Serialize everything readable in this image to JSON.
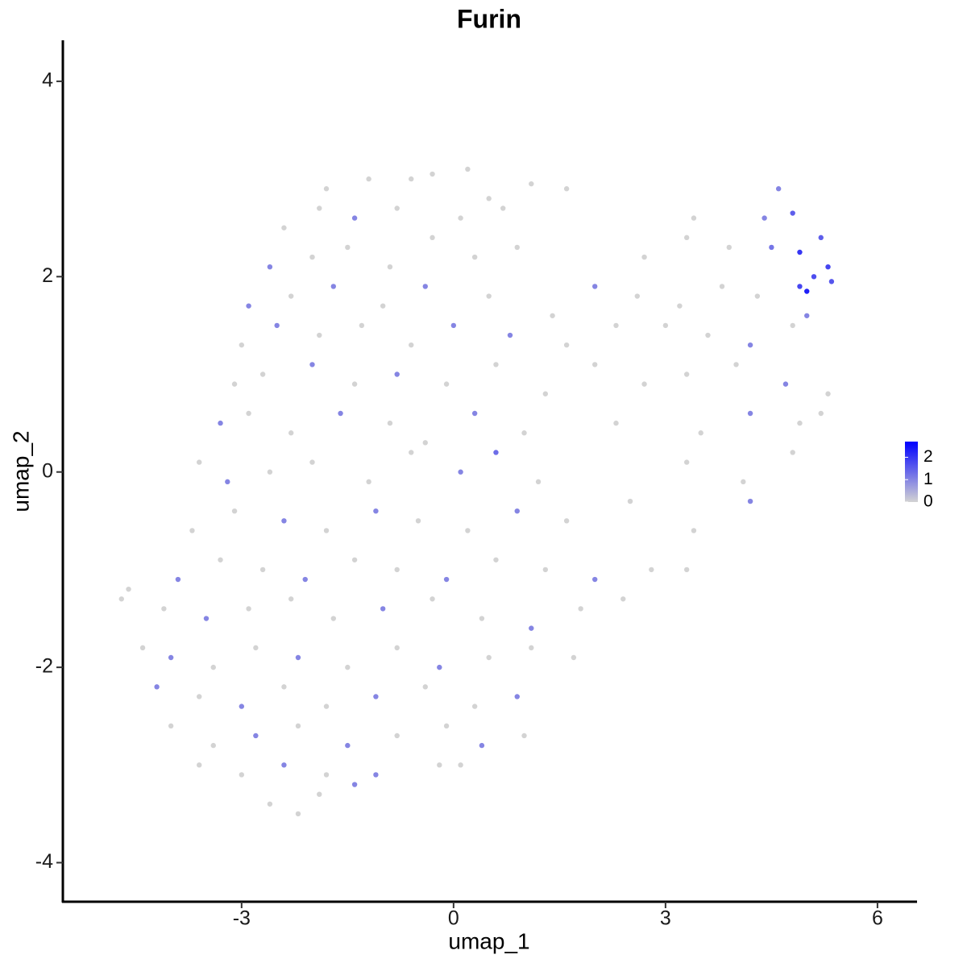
{
  "chart_data": {
    "type": "scatter",
    "title": "Furin",
    "x_label": "umap_1",
    "y_label": "umap_2",
    "xlim": [
      -5.53,
      6.56
    ],
    "ylim": [
      -4.4,
      4.42
    ],
    "xticks": [
      -3,
      0,
      3,
      6
    ],
    "yticks": [
      -4,
      -2,
      0,
      2,
      4
    ],
    "colorbar": {
      "lim": [
        0,
        2.7
      ],
      "ticks": [
        0,
        1,
        2
      ],
      "colors": [
        "#d3d3d3",
        "#0000ff"
      ]
    },
    "x": [
      -1.8,
      -1.2,
      -0.6,
      -0.3,
      0.2,
      0.5,
      1.1,
      -2.4,
      -1.9,
      -1.4,
      -0.8,
      0.1,
      0.7,
      1.6,
      3.4,
      4.4,
      4.6,
      4.8,
      -2.6,
      -2.0,
      -1.5,
      -0.9,
      -0.3,
      0.3,
      0.9,
      2.7,
      3.3,
      3.9,
      4.5,
      4.9,
      5.2,
      5.3,
      -2.9,
      -2.3,
      -1.7,
      -1.0,
      -0.4,
      0.5,
      1.4,
      2.0,
      2.6,
      3.2,
      3.8,
      4.3,
      5.0,
      4.9,
      5.35,
      5.1,
      -3.0,
      -2.5,
      -1.9,
      -1.3,
      -0.6,
      0,
      0.8,
      1.6,
      2.3,
      3.0,
      3.6,
      4.2,
      4.8,
      5.0,
      -3.1,
      -2.7,
      -2.0,
      -1.4,
      -0.8,
      -0.1,
      0.6,
      1.3,
      2.0,
      2.7,
      3.3,
      4.0,
      4.7,
      5.3,
      -3.3,
      -2.9,
      -2.3,
      -1.6,
      -0.9,
      -0.4,
      0.3,
      1.0,
      2.3,
      3.5,
      4.2,
      4.9,
      5.2,
      -3.6,
      -3.2,
      -2.6,
      -2.0,
      -1.2,
      -0.6,
      0.1,
      0.6,
      1.2,
      3.3,
      4.1,
      4.8,
      -3.7,
      -3.1,
      -2.4,
      -1.8,
      -1.1,
      -0.5,
      0.2,
      0.9,
      1.6,
      2.5,
      3.4,
      4.2,
      -3.9,
      -3.3,
      -2.7,
      -2.1,
      -1.4,
      -0.8,
      -0.1,
      0.6,
      1.3,
      2.0,
      2.8,
      3.3,
      -4.7,
      -4.6,
      -4.1,
      -3.5,
      -2.9,
      -2.3,
      -1.7,
      -1.0,
      -0.3,
      0.4,
      1.1,
      1.8,
      2.4,
      -4.4,
      -4.0,
      -3.4,
      -2.8,
      -2.2,
      -1.5,
      -0.8,
      -0.2,
      0.5,
      1.1,
      1.7,
      -4.2,
      -3.6,
      -3.0,
      -2.4,
      -1.8,
      -1.1,
      -0.4,
      0.3,
      0.9,
      -4.0,
      -3.4,
      -2.8,
      -2.2,
      -1.5,
      -0.8,
      -0.1,
      0.4,
      1.0,
      -3.6,
      -3.0,
      -2.4,
      -1.8,
      -1.1,
      -0.2,
      0.1,
      -2.6,
      -2.2,
      -1.9,
      -1.4
    ],
    "values": [
      2.9,
      3.0,
      3.0,
      3.05,
      3.1,
      2.8,
      2.95,
      2.5,
      2.7,
      2.6,
      2.7,
      2.6,
      2.7,
      2.9,
      2.6,
      2.6,
      2.9,
      2.65,
      2.1,
      2.2,
      2.3,
      2.1,
      2.4,
      2.2,
      2.3,
      2.2,
      2.4,
      2.3,
      2.3,
      2.25,
      2.4,
      2.1,
      1.7,
      1.8,
      1.9,
      1.7,
      1.9,
      1.8,
      1.6,
      1.9,
      1.8,
      1.7,
      1.9,
      1.8,
      1.85,
      1.9,
      1.95,
      2.0,
      1.3,
      1.5,
      1.4,
      1.5,
      1.3,
      1.5,
      1.4,
      1.3,
      1.5,
      1.5,
      1.4,
      1.3,
      1.5,
      1.6,
      0.9,
      1.0,
      1.1,
      0.9,
      1.0,
      0.9,
      1.1,
      0.8,
      1.1,
      0.9,
      1.0,
      1.1,
      0.9,
      0.8,
      0.5,
      0.6,
      0.4,
      0.6,
      0.5,
      0.3,
      0.6,
      0.4,
      0.5,
      0.4,
      0.6,
      0.5,
      0.6,
      0.1,
      -0.1,
      0.0,
      0.1,
      -0.1,
      0.2,
      0.0,
      0.2,
      -0.1,
      0.1,
      -0.1,
      0.2,
      -0.6,
      -0.4,
      -0.5,
      -0.6,
      -0.4,
      -0.5,
      -0.6,
      -0.4,
      -0.5,
      -0.3,
      -0.6,
      -0.3,
      -1.1,
      -0.9,
      -1.0,
      -1.1,
      -0.9,
      -1.0,
      -1.1,
      -0.9,
      -1.0,
      -1.1,
      -1.0,
      -1.0,
      -1.3,
      -1.2,
      -1.4,
      -1.5,
      -1.4,
      -1.3,
      -1.5,
      -1.4,
      -1.3,
      -1.5,
      -1.6,
      -1.4,
      -1.3,
      -1.8,
      -1.9,
      -2.0,
      -1.8,
      -1.9,
      -2.0,
      -1.8,
      -2.0,
      -1.9,
      -1.8,
      -1.9,
      -2.2,
      -2.3,
      -2.4,
      -2.2,
      -2.4,
      -2.3,
      -2.2,
      -2.4,
      -2.3,
      -2.6,
      -2.8,
      -2.7,
      -2.6,
      -2.8,
      -2.7,
      -2.6,
      -2.8,
      -2.7,
      -3.0,
      -3.1,
      -3.0,
      -3.1,
      -3.1,
      -3.0,
      -3.0,
      -3.4,
      -3.5,
      -3.3,
      -3.2
    ],
    "expression": [
      0,
      0,
      0,
      0,
      0,
      0,
      0,
      0,
      0,
      1,
      0,
      0,
      0,
      0,
      0,
      1,
      1,
      1.5,
      1,
      0,
      0,
      0,
      0,
      0,
      0,
      0,
      0,
      0,
      1.2,
      2,
      1.5,
      1.8,
      1,
      0,
      1,
      0,
      1,
      0,
      0,
      1,
      0,
      0,
      0,
      0,
      2.3,
      1.8,
      1.6,
      1.7,
      0,
      1,
      0,
      0,
      0,
      1,
      1,
      0,
      0,
      0,
      0,
      1,
      0,
      1,
      0,
      0,
      1,
      0,
      1,
      0,
      0,
      0,
      0,
      0,
      0,
      0,
      1,
      0,
      1,
      0,
      0,
      1,
      0,
      0,
      1,
      0,
      0,
      0,
      1,
      0,
      0,
      0,
      1,
      0,
      0,
      0,
      0,
      1,
      1.3,
      0,
      0,
      0,
      0,
      0,
      0,
      1,
      0,
      1,
      0,
      0,
      1,
      0,
      0,
      0,
      1,
      1,
      0,
      0,
      1,
      0,
      0,
      1,
      0,
      0,
      1,
      0,
      0,
      0,
      0,
      0,
      1,
      0,
      0,
      0,
      1,
      0,
      0,
      1,
      0,
      0,
      0,
      1,
      0,
      0,
      1,
      0,
      0,
      1,
      0,
      0,
      0,
      1,
      0,
      1,
      0,
      0,
      1,
      0,
      0,
      1,
      0,
      0,
      1,
      0,
      1,
      0,
      0,
      1,
      0,
      0,
      0,
      1,
      0,
      1,
      0,
      0,
      0,
      0,
      0,
      1
    ]
  }
}
